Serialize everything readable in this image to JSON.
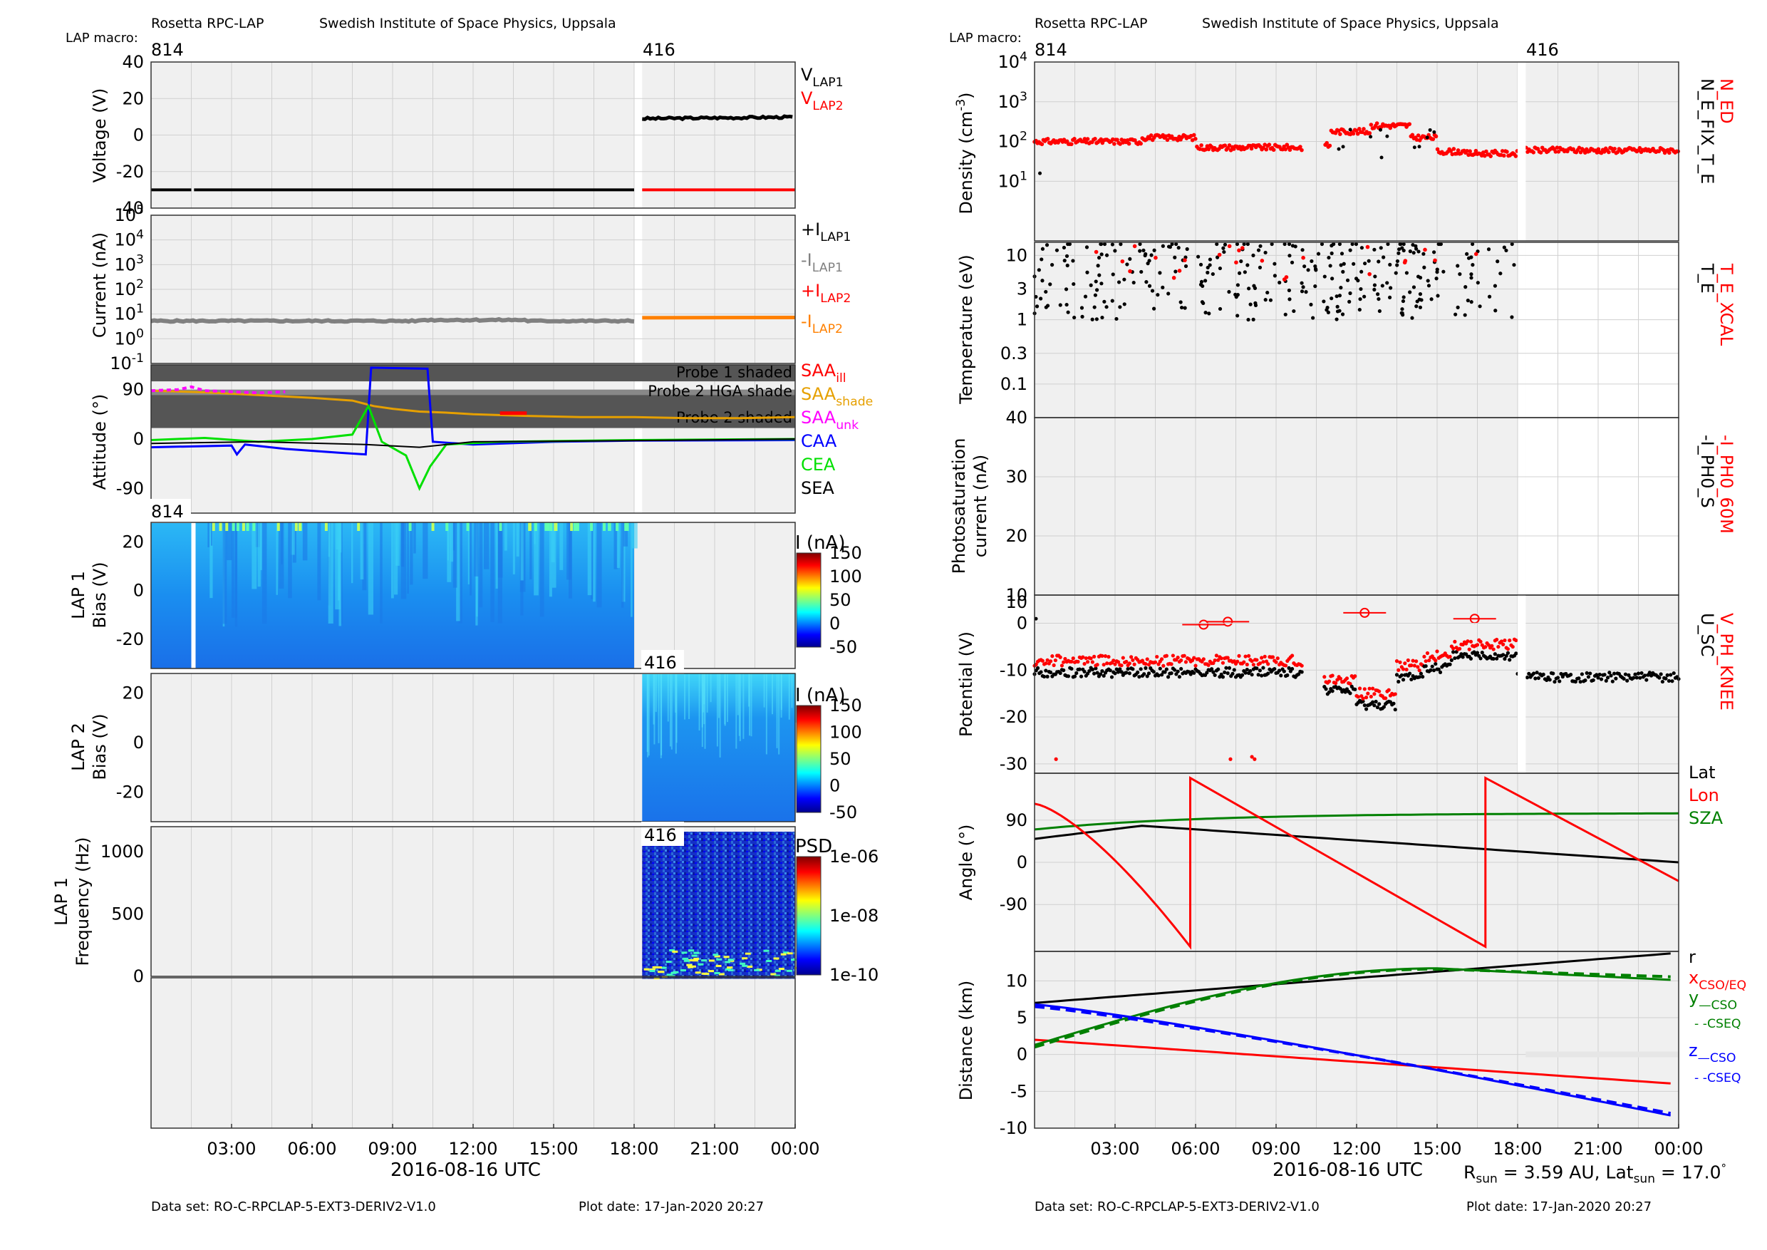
{
  "header": {
    "left_institution_a": "Rosetta RPC-LAP",
    "left_institution_b": "Swedish Institute of Space Physics, Uppsala",
    "right_institution_a": "Rosetta RPC-LAP",
    "right_institution_b": "Swedish Institute of Space Physics, Uppsala",
    "macro_label": "LAP macro:",
    "macro_a": "814",
    "macro_b": "416"
  },
  "footer": {
    "dataset": "Data set: RO-C-RPCLAP-5-EXT3-DERIV2-V1.0",
    "plotdate": "Plot date: 17-Jan-2020 20:27",
    "xlabel": "2016-08-16 UTC",
    "xticks": [
      "03:00",
      "06:00",
      "09:00",
      "12:00",
      "15:00",
      "18:00",
      "21:00",
      "00:00"
    ],
    "rsun_text": "R",
    "rsun_sub": "sun",
    "rsun_val": " = 3.59 AU, Lat",
    "lat_sub": "sun",
    "lat_val": " = 17.0",
    "deg": "°"
  },
  "colors": {
    "red": "#ff0000",
    "gray": "#808080",
    "orange": "#ff8000",
    "blue": "#0000ff",
    "green": "#00e000",
    "darkgreen": "#008000",
    "magenta": "#ff00ff",
    "saa_shade": "#e6a000"
  },
  "chart_data": [
    {
      "type": "line",
      "panel": "voltage",
      "ylabel": "Voltage (V)",
      "yticks": [
        "40",
        "20",
        "0",
        "-20",
        "-40"
      ],
      "ylim": [
        -40,
        40
      ],
      "x_unit": "hours since 2016-08-16 00:00",
      "legend": [
        {
          "t": "V",
          "s": "LAP1",
          "c": "#000"
        },
        {
          "t": "V",
          "s": "LAP2",
          "c": "#ff0000"
        }
      ],
      "series": [
        {
          "name": "VLAP1 (814)",
          "x": [
            0,
            18
          ],
          "y": [
            -30,
            -30
          ]
        },
        {
          "name": "VLAP1 (416)",
          "x": [
            18.3,
            24
          ],
          "y": [
            9,
            10
          ]
        },
        {
          "name": "VLAP2 (416)",
          "x": [
            18.3,
            24
          ],
          "y": [
            -30,
            -30
          ]
        }
      ]
    },
    {
      "type": "line",
      "panel": "current",
      "ylabel": "Current (nA)",
      "yticks": [
        "10",
        "10",
        "10",
        "10",
        "10",
        "10"
      ],
      "ysup": [
        "5",
        "4",
        "3",
        "2",
        "1",
        "0"
      ],
      "ylast": "10",
      "ylastsup": "-1",
      "scale": "log",
      "legend": [
        {
          "t": "+I",
          "s": "LAP1",
          "c": "#000"
        },
        {
          "t": "-I",
          "s": "LAP1",
          "c": "#808080"
        },
        {
          "t": "+I",
          "s": "LAP2",
          "c": "#ff0000"
        },
        {
          "t": "-I",
          "s": "LAP2",
          "c": "#ff8000"
        }
      ],
      "series": [
        {
          "name": "-ILAP1",
          "x": [
            0,
            18
          ],
          "y": [
            5,
            5
          ]
        },
        {
          "name": "-ILAP2",
          "x": [
            18.3,
            24
          ],
          "y": [
            7,
            7
          ]
        }
      ]
    },
    {
      "type": "line",
      "panel": "attitude",
      "ylabel": "Attitude (°)",
      "yticks": [
        "90",
        "0",
        "-90"
      ],
      "ylim": [
        -135,
        135
      ],
      "shades": [
        "Probe 1 shaded",
        "Probe 2 HGA shade",
        "Probe 2 shaded"
      ],
      "legend": [
        {
          "t": "SAA",
          "s": "ill",
          "c": "#ff0000"
        },
        {
          "t": "SAA",
          "s": "shade",
          "c": "#e6a000"
        },
        {
          "t": "SAA",
          "s": "unk",
          "c": "#ff00ff"
        },
        {
          "t": "CAA",
          "s": "",
          "c": "#0000ff"
        },
        {
          "t": "CEA",
          "s": "",
          "c": "#00e000"
        },
        {
          "t": "SEA",
          "s": "",
          "c": "#000"
        }
      ]
    },
    {
      "type": "heatmap",
      "panel": "lap1_bias",
      "ylabel": [
        "LAP 1",
        "Bias (V)"
      ],
      "yticks": [
        "20",
        "0",
        "-20"
      ],
      "macro": "814",
      "cbar_label": "I (nA)",
      "cbar_ticks": [
        "150",
        "100",
        "50",
        "0",
        "-50"
      ]
    },
    {
      "type": "heatmap",
      "panel": "lap2_bias",
      "ylabel": [
        "LAP 2",
        "Bias (V)"
      ],
      "yticks": [
        "20",
        "0",
        "-20"
      ],
      "macro": "416",
      "cbar_label": "I (nA)",
      "cbar_ticks": [
        "150",
        "100",
        "50",
        "0",
        "-50"
      ]
    },
    {
      "type": "heatmap",
      "panel": "lap1_freq",
      "ylabel": [
        "LAP 1",
        "Frequency (Hz)"
      ],
      "yticks": [
        "1000",
        "500",
        "0"
      ],
      "macro": "416",
      "cbar_label": "PSD",
      "cbar_ticks": [
        "1e-06",
        "1e-08",
        "1e-10"
      ]
    },
    {
      "type": "scatter",
      "panel": "density",
      "ylabel": "Density (cm",
      "ylabelsup": "-3",
      "ylabelend": ")",
      "yticks": [
        "10",
        "10",
        "10",
        "10"
      ],
      "ysup": [
        "4",
        "3",
        "2",
        "1"
      ],
      "scale": "log",
      "legend": [
        {
          "t": "N_ED",
          "c": "#ff0000"
        },
        {
          "t": "N_E_FIX_T_E",
          "c": "#000"
        }
      ]
    },
    {
      "type": "scatter",
      "panel": "temperature",
      "ylabel": "Temperature (eV)",
      "yticks": [
        "10",
        "3",
        "1",
        "0.3",
        "0.1"
      ],
      "scale": "log",
      "legend": [
        {
          "t": "T_E_XCAL",
          "c": "#ff0000"
        },
        {
          "t": "T_E",
          "c": "#000"
        }
      ]
    },
    {
      "type": "scatter",
      "panel": "photosat",
      "ylabel": [
        "Photosaturation",
        "current (nA)"
      ],
      "yticks": [
        "40",
        "30",
        "20",
        "10",
        "10"
      ],
      "legend": [
        {
          "t": "-I_PH0_60M",
          "c": "#ff0000"
        },
        {
          "t": "-I_PH0_S",
          "c": "#000"
        }
      ],
      "points": [
        {
          "x": 6.3,
          "y": 5
        },
        {
          "x": 7.2,
          "y": 5.5
        },
        {
          "x": 12.3,
          "y": 7
        },
        {
          "x": 16.4,
          "y": 6
        }
      ]
    },
    {
      "type": "scatter",
      "panel": "potential",
      "ylabel": "Potential (V)",
      "yticks": [
        "0",
        "-10",
        "-20",
        "-30"
      ],
      "ylim": [
        -32,
        6
      ],
      "legend": [
        {
          "t": "V_PH_KNEE",
          "c": "#ff0000"
        },
        {
          "t": "U_SC",
          "c": "#000"
        }
      ]
    },
    {
      "type": "line",
      "panel": "angle",
      "ylabel": "Angle (°)",
      "yticks": [
        "90",
        "0",
        "-90"
      ],
      "ylim": [
        -190,
        190
      ],
      "legend": [
        {
          "t": "Lat",
          "c": "#000"
        },
        {
          "t": "Lon",
          "c": "#ff0000"
        },
        {
          "t": "SZA",
          "c": "#008000"
        }
      ],
      "series": [
        {
          "name": "Lat",
          "x": [
            0,
            4,
            12,
            24
          ],
          "y": [
            50,
            78,
            40,
            0
          ]
        },
        {
          "name": "SZA",
          "x": [
            0,
            6,
            12,
            24
          ],
          "y": [
            70,
            90,
            100,
            105
          ]
        }
      ]
    },
    {
      "type": "line",
      "panel": "distance",
      "ylabel": "Distance (km)",
      "yticks": [
        "10",
        "5",
        "0",
        "-5",
        "-10"
      ],
      "ylim": [
        -10,
        14
      ],
      "legend": [
        {
          "t": "r",
          "s": "",
          "c": "#000"
        },
        {
          "t": "x",
          "s": "CSO/EQ",
          "c": "#ff0000"
        },
        {
          "t": "y",
          "s": "—CSO",
          "c": "#008000"
        },
        {
          "t": "",
          "s": "- -CSEQ",
          "c": "#008000"
        },
        {
          "t": "z",
          "s": "—CSO",
          "c": "#0000ff"
        },
        {
          "t": "",
          "s": "- -CSEQ",
          "c": "#0000ff"
        }
      ],
      "series": [
        {
          "name": "r",
          "x": [
            0,
            24
          ],
          "y": [
            7,
            13.8
          ]
        },
        {
          "name": "x",
          "x": [
            0,
            24
          ],
          "y": [
            2,
            -4
          ]
        },
        {
          "name": "y",
          "x": [
            0,
            15,
            24
          ],
          "y": [
            1.3,
            11.5,
            10
          ]
        },
        {
          "name": "z",
          "x": [
            0,
            24
          ],
          "y": [
            6.8,
            -8.5
          ]
        }
      ]
    }
  ]
}
